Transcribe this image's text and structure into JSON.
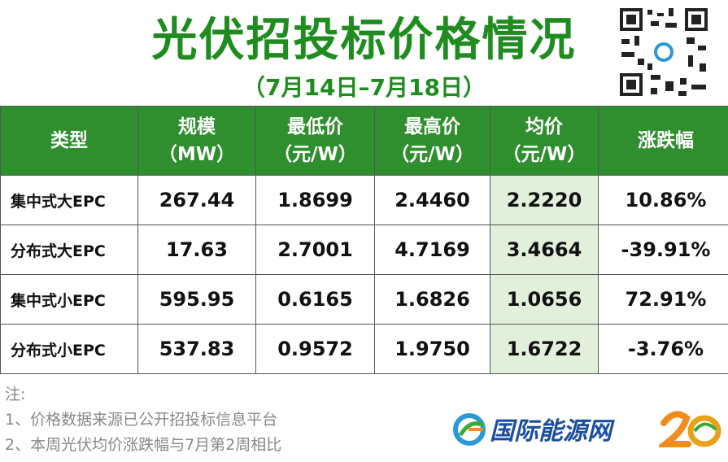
{
  "header": {
    "title": "光伏招投标价格情况",
    "subtitle": "（7月14日–7月18日）"
  },
  "table": {
    "columns": [
      [
        "类型"
      ],
      [
        "规模",
        "（MW）"
      ],
      [
        "最低价",
        "（元/W）"
      ],
      [
        "最高价",
        "（元/W）"
      ],
      [
        "均价",
        "（元/W）"
      ],
      [
        "涨跌幅"
      ]
    ],
    "rows": [
      [
        "集中式大EPC",
        "267.44",
        "1.8699",
        "2.4460",
        "2.2220",
        "10.86%"
      ],
      [
        "分布式大EPC",
        "17.63",
        "2.7001",
        "4.7169",
        "3.4664",
        "-39.91%"
      ],
      [
        "集中式小EPC",
        "595.95",
        "0.6165",
        "1.6826",
        "1.0656",
        "72.91%"
      ],
      [
        "分布式小EPC",
        "537.83",
        "0.9572",
        "1.9750",
        "1.6722",
        "-3.76%"
      ]
    ]
  },
  "notes": {
    "heading": "注:",
    "items": [
      "1、价格数据来源已公开招投标信息平台",
      "2、本周光伏均价涨跌幅与7月第2周相比"
    ]
  },
  "logo": {
    "text": "国际能源网"
  }
}
